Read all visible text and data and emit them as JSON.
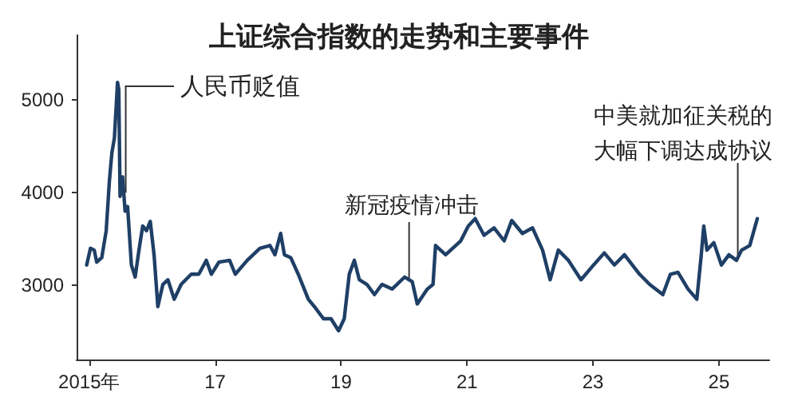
{
  "chart_data": {
    "type": "line",
    "title": "上证综合指数的走势和主要事件",
    "x": [
      2014.96,
      2015.02,
      2015.08,
      2015.12,
      2015.2,
      2015.27,
      2015.32,
      2015.36,
      2015.4,
      2015.45,
      2015.47,
      2015.49,
      2015.53,
      2015.57,
      2015.61,
      2015.67,
      2015.73,
      2015.79,
      2015.85,
      2015.91,
      2015.97,
      2016.03,
      2016.09,
      2016.17,
      2016.25,
      2016.35,
      2016.46,
      2016.62,
      2016.74,
      2016.86,
      2016.94,
      2017.06,
      2017.23,
      2017.32,
      2017.51,
      2017.71,
      2017.87,
      2017.95,
      2018.04,
      2018.1,
      2018.2,
      2018.32,
      2018.48,
      2018.6,
      2018.72,
      2018.84,
      2018.96,
      2019.05,
      2019.13,
      2019.21,
      2019.29,
      2019.41,
      2019.53,
      2019.65,
      2019.81,
      2020.01,
      2020.13,
      2020.21,
      2020.37,
      2020.46,
      2020.5,
      2020.66,
      2020.9,
      2021.02,
      2021.13,
      2021.27,
      2021.43,
      2021.59,
      2021.71,
      2021.88,
      2022.04,
      2022.2,
      2022.32,
      2022.45,
      2022.61,
      2022.81,
      2023.01,
      2023.18,
      2023.34,
      2023.5,
      2023.74,
      2023.9,
      2024.11,
      2024.23,
      2024.35,
      2024.51,
      2024.65,
      2024.72,
      2024.76,
      2024.81,
      2024.92,
      2025.04,
      2025.16,
      2025.28,
      2025.36,
      2025.49,
      2025.61
    ],
    "series": [
      {
        "color": "#1f3f66",
        "values": [
          3220,
          3400,
          3380,
          3250,
          3300,
          3590,
          4120,
          4430,
          4590,
          5190,
          5110,
          3960,
          4170,
          3800,
          3850,
          3220,
          3090,
          3380,
          3640,
          3590,
          3690,
          3330,
          2770,
          3010,
          3060,
          2850,
          3010,
          3120,
          3120,
          3270,
          3120,
          3250,
          3270,
          3120,
          3270,
          3400,
          3430,
          3330,
          3560,
          3330,
          3300,
          3120,
          2850,
          2750,
          2640,
          2640,
          2510,
          2640,
          3120,
          3270,
          3060,
          3010,
          2900,
          3010,
          2960,
          3090,
          3040,
          2800,
          2960,
          3010,
          3430,
          3330,
          3480,
          3640,
          3720,
          3540,
          3620,
          3480,
          3700,
          3560,
          3620,
          3380,
          3060,
          3380,
          3270,
          3060,
          3220,
          3350,
          3220,
          3330,
          3120,
          3010,
          2900,
          3120,
          3140,
          2960,
          2850,
          3330,
          3640,
          3380,
          3460,
          3220,
          3330,
          3270,
          3380,
          3430,
          3720
        ]
      }
    ],
    "xlim": [
      2014.8,
      2025.8
    ],
    "xticks": [
      {
        "value": 2015,
        "label": "2015年"
      },
      {
        "value": 2017,
        "label": "17"
      },
      {
        "value": 2019,
        "label": "19"
      },
      {
        "value": 2021,
        "label": "21"
      },
      {
        "value": 2023,
        "label": "23"
      },
      {
        "value": 2025,
        "label": "25"
      }
    ],
    "ylim": [
      2200,
      5700
    ],
    "yticks": [
      3000,
      4000,
      5000
    ],
    "grid": false,
    "marker": "none",
    "line_style": "solid",
    "annotations": [
      {
        "text": "人民币贬值",
        "x": 2015.58,
        "y": 4000
      },
      {
        "text": "新冠疫情冲击",
        "x": 2020.08,
        "y": 3050
      },
      {
        "text": "中美就加征关税的大幅下调达成协议",
        "x": 2025.3,
        "y": 3300
      }
    ]
  }
}
